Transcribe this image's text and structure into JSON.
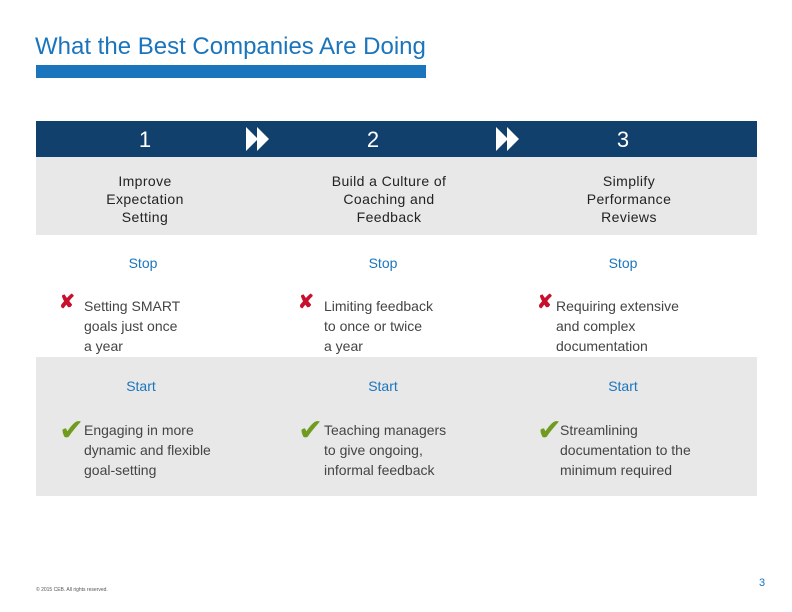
{
  "title": "What the Best Companies Are Doing",
  "colors": {
    "accent": "#1b75bc",
    "header": "#12406c",
    "band": "#e8e8e8",
    "stop": "#c8102e",
    "start": "#6f9b1f"
  },
  "steps": [
    {
      "number": "1",
      "topic": [
        "Improve",
        "Expectation",
        "Setting"
      ],
      "stop_label": "Stop",
      "stop_text": [
        "Setting SMART",
        "goals just once",
        "a year"
      ],
      "start_label": "Start",
      "start_text": [
        "Engaging in more",
        "dynamic and flexible",
        "goal-setting"
      ]
    },
    {
      "number": "2",
      "topic": [
        "Build a Culture of",
        "Coaching and",
        "Feedback"
      ],
      "stop_label": "Stop",
      "stop_text": [
        "Limiting feedback",
        "to once or twice",
        "a year"
      ],
      "start_label": "Start",
      "start_text": [
        "Teaching managers",
        "to give ongoing,",
        "informal feedback"
      ]
    },
    {
      "number": "3",
      "topic": [
        "Simplify",
        "Performance",
        "Reviews"
      ],
      "stop_label": "Stop",
      "stop_text": [
        "Requiring extensive",
        "and complex",
        "documentation"
      ],
      "start_label": "Start",
      "start_text": [
        "Streamlining",
        "documentation to the",
        "minimum required"
      ]
    }
  ],
  "icons": {
    "stop": "x-mark-icon",
    "start": "checkmark-icon",
    "arrow": "double-chevron-right-icon"
  },
  "footer": "© 2015 CEB. All rights reserved.",
  "page_number": "3"
}
